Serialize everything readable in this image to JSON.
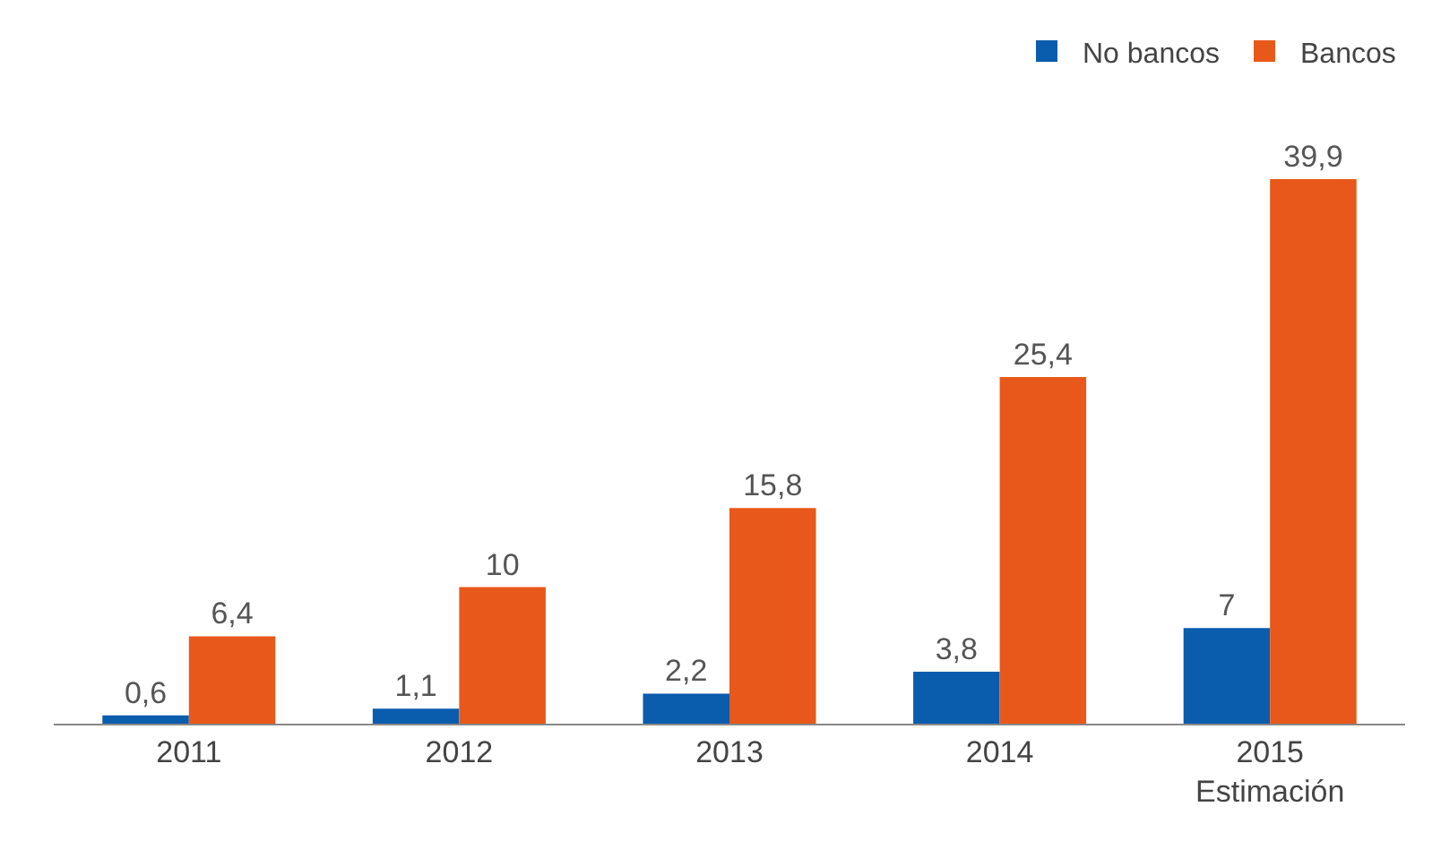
{
  "chart_data": {
    "type": "bar",
    "categories": [
      "2011",
      "2012",
      "2013",
      "2014",
      "2015\nEstimación"
    ],
    "series": [
      {
        "name": "No bancos",
        "color": "#0a5cad",
        "values": [
          0.6,
          1.1,
          2.2,
          3.8,
          7
        ],
        "value_labels": [
          "0,6",
          "1,1",
          "2,2",
          "3,8",
          "7"
        ]
      },
      {
        "name": "Bancos",
        "color": "#e8581a",
        "values": [
          6.4,
          10,
          15.8,
          25.4,
          39.9
        ],
        "value_labels": [
          "6,4",
          "10",
          "15,8",
          "25,4",
          "39,9"
        ]
      }
    ],
    "legend": "top right"
  }
}
